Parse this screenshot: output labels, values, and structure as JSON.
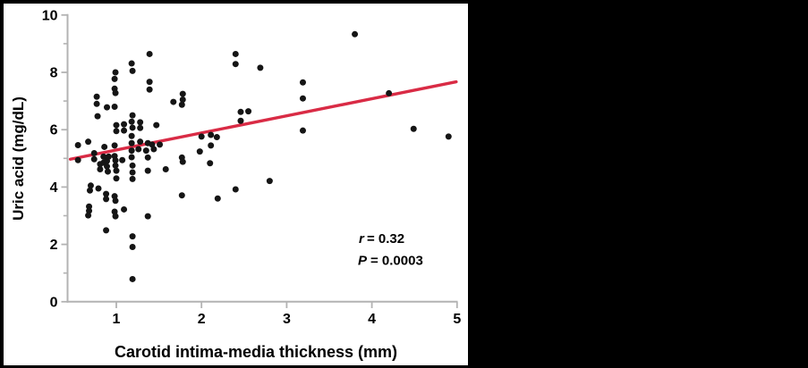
{
  "chart_data": {
    "type": "scatter",
    "title": "",
    "xlabel": "Carotid intima-media thickness (mm)",
    "ylabel": "Uric acid (mg/dL)",
    "xlim": [
      0.43,
      5.05
    ],
    "ylim": [
      0,
      10
    ],
    "x_ticks": [
      1,
      2,
      3,
      4,
      5
    ],
    "y_ticks": [
      0,
      2,
      4,
      6,
      8,
      10
    ],
    "y_minor_ticks": [
      1,
      3,
      5,
      7,
      9
    ],
    "grid": false,
    "legend": false,
    "points": [
      [
        0.55,
        5.46
      ],
      [
        0.55,
        4.94
      ],
      [
        0.67,
        5.58
      ],
      [
        0.7,
        4.05
      ],
      [
        0.69,
        3.88
      ],
      [
        0.68,
        3.32
      ],
      [
        0.68,
        3.17
      ],
      [
        0.67,
        3.01
      ],
      [
        0.74,
        5.18
      ],
      [
        0.74,
        4.97
      ],
      [
        0.77,
        7.15
      ],
      [
        0.77,
        6.9
      ],
      [
        0.78,
        6.47
      ],
      [
        0.79,
        3.95
      ],
      [
        0.81,
        4.8
      ],
      [
        0.81,
        4.62
      ],
      [
        0.85,
        5.06
      ],
      [
        0.85,
        4.85
      ],
      [
        0.86,
        5.4
      ],
      [
        0.88,
        3.76
      ],
      [
        0.88,
        3.58
      ],
      [
        0.88,
        2.49
      ],
      [
        0.89,
        6.78
      ],
      [
        0.89,
        4.91
      ],
      [
        0.89,
        4.72
      ],
      [
        0.9,
        4.54
      ],
      [
        0.91,
        5.06
      ],
      [
        0.99,
        8.0
      ],
      [
        0.98,
        7.77
      ],
      [
        0.98,
        7.43
      ],
      [
        0.99,
        7.28
      ],
      [
        0.98,
        6.8
      ],
      [
        1.0,
        6.16
      ],
      [
        1.0,
        5.95
      ],
      [
        0.98,
        5.45
      ],
      [
        0.98,
        5.08
      ],
      [
        0.99,
        4.93
      ],
      [
        0.99,
        4.75
      ],
      [
        1.0,
        4.57
      ],
      [
        1.0,
        4.3
      ],
      [
        0.98,
        3.68
      ],
      [
        0.99,
        3.52
      ],
      [
        0.98,
        3.14
      ],
      [
        0.99,
        2.98
      ],
      [
        1.09,
        6.19
      ],
      [
        1.09,
        5.97
      ],
      [
        1.07,
        4.94
      ],
      [
        1.09,
        3.22
      ],
      [
        1.18,
        8.31
      ],
      [
        1.19,
        8.05
      ],
      [
        1.19,
        6.5
      ],
      [
        1.18,
        6.28
      ],
      [
        1.19,
        6.07
      ],
      [
        1.18,
        5.78
      ],
      [
        1.18,
        5.53
      ],
      [
        1.18,
        5.27
      ],
      [
        1.18,
        5.04
      ],
      [
        1.19,
        4.75
      ],
      [
        1.19,
        4.51
      ],
      [
        1.19,
        4.28
      ],
      [
        1.19,
        2.28
      ],
      [
        1.19,
        1.91
      ],
      [
        1.19,
        0.79
      ],
      [
        1.28,
        6.26
      ],
      [
        1.28,
        6.06
      ],
      [
        1.28,
        5.58
      ],
      [
        1.26,
        5.32
      ],
      [
        1.35,
        5.27
      ],
      [
        1.37,
        5.53
      ],
      [
        1.37,
        5.03
      ],
      [
        1.37,
        4.57
      ],
      [
        1.37,
        2.98
      ],
      [
        1.39,
        8.64
      ],
      [
        1.39,
        7.67
      ],
      [
        1.39,
        7.4
      ],
      [
        1.42,
        5.48
      ],
      [
        1.44,
        5.32
      ],
      [
        1.47,
        6.16
      ],
      [
        1.51,
        5.48
      ],
      [
        1.58,
        4.62
      ],
      [
        1.67,
        6.97
      ],
      [
        1.78,
        7.25
      ],
      [
        1.78,
        7.05
      ],
      [
        1.77,
        6.87
      ],
      [
        1.77,
        5.03
      ],
      [
        1.78,
        4.88
      ],
      [
        1.77,
        3.71
      ],
      [
        1.98,
        5.24
      ],
      [
        2.0,
        5.76
      ],
      [
        2.11,
        5.82
      ],
      [
        2.18,
        5.74
      ],
      [
        2.11,
        5.45
      ],
      [
        2.1,
        4.83
      ],
      [
        2.19,
        3.6
      ],
      [
        2.4,
        8.64
      ],
      [
        2.4,
        8.29
      ],
      [
        2.4,
        3.92
      ],
      [
        2.46,
        6.62
      ],
      [
        2.55,
        6.64
      ],
      [
        2.46,
        6.31
      ],
      [
        2.69,
        8.16
      ],
      [
        2.8,
        4.21
      ],
      [
        3.19,
        7.65
      ],
      [
        3.19,
        7.09
      ],
      [
        3.19,
        5.97
      ],
      [
        3.8,
        9.33
      ],
      [
        4.2,
        7.27
      ],
      [
        4.49,
        6.03
      ],
      [
        4.9,
        5.76
      ]
    ],
    "regression_line": {
      "x1": 0.46,
      "y1": 4.97,
      "x2": 4.99,
      "y2": 7.67
    },
    "annotation": {
      "r_var": "r",
      "r_rest": "= 0.32",
      "p_var": "P",
      "p_rest": "= 0.0003"
    },
    "colors": {
      "points": "#151515",
      "line": "#d92b45",
      "axis": "#b3b3b3",
      "text": "#000000",
      "panel": "#ffffff",
      "background": "#000000"
    }
  }
}
